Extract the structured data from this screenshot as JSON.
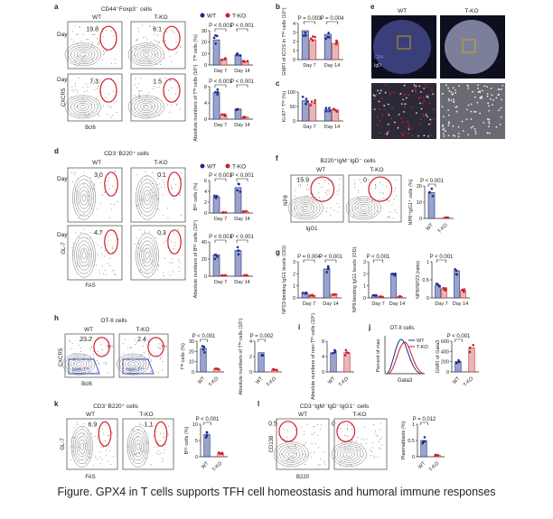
{
  "caption": "Figure. GPX4 in T cells supports TFH cell homeostasis and humoral immune responses",
  "groups": {
    "wt": "WT",
    "ko": "T-KO"
  },
  "colors": {
    "wt": "#1f2a8c",
    "ko": "#c8202a",
    "gate": "#d4202a",
    "contour": "#555555",
    "wt_bar": "#9aa4c8",
    "ko_bar": "#e6b8b8"
  },
  "panels": {
    "a": {
      "letter": "a",
      "title": "CD44⁺Foxp3⁻ cells",
      "row_labels": [
        "Day 7",
        "Day 14"
      ],
      "gate_values": [
        "19.8",
        "6.1",
        "7.3",
        "1.5"
      ],
      "x_axis": "Bcl6",
      "y_axis": "CXCR5",
      "chart1_ylabel": "Tᶠᴴ cells (%)",
      "chart1_pvals": [
        "P < 0.001",
        "P < 0.001"
      ],
      "chart2_ylabel": "Absolute numbers of Tᶠᴴ cells (10⁵)",
      "chart2_pvals": [
        "P < 0.001",
        "P < 0.001"
      ],
      "x_categories": [
        "Day 7",
        "Day 14"
      ]
    },
    "b": {
      "letter": "b",
      "ylabel": "GMFI of ICOS in Tᶠᴴ cells (10⁴)",
      "pvals": [
        "P = 0.003",
        "P = 0.004"
      ],
      "x_categories": [
        "Day 7",
        "Day 14"
      ]
    },
    "c": {
      "letter": "c",
      "ylabel": "Ki-67⁺ Tᶠᴴ (%)",
      "x_categories": [
        "Day 7",
        "Day 14"
      ]
    },
    "e": {
      "letter": "e",
      "labels": [
        "WT",
        "T-KO"
      ],
      "stain_labels": [
        "CD4",
        "IgD"
      ]
    },
    "d": {
      "letter": "d",
      "title": "CD3⁻B220⁺ cells",
      "row_labels": [
        "Day 7",
        "Day 14"
      ],
      "gate_values": [
        "3.0",
        "0.1",
        "4.7",
        "0.3"
      ],
      "x_axis": "FAS",
      "y_axis": "GL-7",
      "chart1_ylabel": "Bᴳᶜ cells (%)",
      "chart1_pvals": [
        "P < 0.001",
        "P < 0.001"
      ],
      "chart2_ylabel": "Absolute numbers of Bᴳᶜ cells (10⁵)",
      "chart2_pvals": [
        "P < 0.001",
        "P < 0.001"
      ],
      "x_categories": [
        "Day 7",
        "Day 14"
      ]
    },
    "f": {
      "letter": "f",
      "title": "B220⁺IgM⁻IgD⁻ cells",
      "gate_values": [
        "15.9",
        "0"
      ],
      "x_axis": "IgG1",
      "y_axis": "NP8",
      "ylabel": "NP8⁺IgG1⁺ cells (%)",
      "pval": "P < 0.001"
    },
    "g": {
      "letter": "g",
      "ylabels": [
        "NP23-binding IgG1 levels (OD)",
        "NP8-binding IgG1 levels (OD)",
        "NP8/NP23 (ratio)"
      ],
      "pvals": [
        "P = 0.004",
        "P < 0.001",
        "P < 0.001",
        "P < 0.001"
      ],
      "x_categories": [
        "Day 7",
        "Day 14"
      ]
    },
    "h": {
      "letter": "h",
      "title": "OT-II cells",
      "gate_values": [
        "23.2",
        "2.4"
      ],
      "gate_label": "Tᶠᴴ",
      "nontfh_label": "Non-Tᶠᴴ",
      "x_axis": "Bcl6",
      "y_axis": "CXCR5",
      "chart1_ylabel": "Tᶠᴴ cells (%)",
      "chart1_pval": "P < 0.001",
      "chart2_ylabel": "Absolute numbers of Tᶠᴴ cells (10⁵)",
      "chart2_pval": "P = 0.002"
    },
    "i": {
      "letter": "i",
      "ylabel": "Absolute numbers of non-Tᶠᴴ cells (10⁵)"
    },
    "j": {
      "letter": "j",
      "title": "OT-II cells",
      "x_axis": "Gata3",
      "y_axis": "Percent of max",
      "ylabel": "GMFI of Gata3",
      "pval": "P < 0.001",
      "yticks": [
        "0",
        "200",
        "400",
        "600"
      ]
    },
    "k": {
      "letter": "k",
      "title": "CD3⁻B220⁺ cells",
      "gate_values": [
        "6.9",
        "1.1"
      ],
      "x_axis": "FAS",
      "y_axis": "GL-7",
      "ylabel": "Bᴳᶜ cells (%)",
      "pval": "P < 0.001"
    },
    "l": {
      "letter": "l",
      "title": "CD3⁻IgM⁻IgD⁻IgG1⁻ cells",
      "gate_values": [
        "0.5",
        "0"
      ],
      "x_axis": "B220",
      "y_axis": "CD138",
      "ylabel": "Plasmablasts (%)",
      "pval": "P = 0.012"
    }
  },
  "chart_data": [
    {
      "panel": "a-1",
      "type": "bar",
      "ylabel": "Tᶠᴴ cells (%)",
      "categories": [
        "Day 7",
        "Day 14"
      ],
      "ylim": [
        0,
        30
      ],
      "yticks": [
        0,
        10,
        20,
        30
      ],
      "series": [
        {
          "name": "WT",
          "values": [
            22,
            9
          ]
        },
        {
          "name": "T-KO",
          "values": [
            5,
            3
          ]
        }
      ]
    },
    {
      "panel": "a-2",
      "type": "bar",
      "ylabel": "Absolute numbers of Tᶠᴴ cells (10⁵)",
      "categories": [
        "Day 7",
        "Day 14"
      ],
      "ylim": [
        0,
        8
      ],
      "yticks": [
        0,
        4,
        8
      ],
      "series": [
        {
          "name": "WT",
          "values": [
            6.5,
            2.5
          ]
        },
        {
          "name": "T-KO",
          "values": [
            1.0,
            0.5
          ]
        }
      ]
    },
    {
      "panel": "b",
      "type": "bar",
      "ylabel": "GMFI of ICOS in Tᶠᴴ cells (10⁴)",
      "categories": [
        "Day 7",
        "Day 14"
      ],
      "ylim": [
        0,
        4
      ],
      "yticks": [
        0,
        1,
        2,
        3,
        4
      ],
      "series": [
        {
          "name": "WT",
          "values": [
            3.2,
            2.8
          ]
        },
        {
          "name": "T-KO",
          "values": [
            2.2,
            1.8
          ]
        }
      ]
    },
    {
      "panel": "c",
      "type": "bar",
      "ylabel": "Ki-67⁺ Tᶠᴴ (%)",
      "categories": [
        "Day 7",
        "Day 14"
      ],
      "ylim": [
        0,
        100
      ],
      "yticks": [
        0,
        50,
        100
      ],
      "series": [
        {
          "name": "WT",
          "values": [
            70,
            40
          ]
        },
        {
          "name": "T-KO",
          "values": [
            60,
            38
          ]
        }
      ]
    },
    {
      "panel": "d-1",
      "type": "bar",
      "ylabel": "Bᴳᶜ cells (%)",
      "categories": [
        "Day 7",
        "Day 14"
      ],
      "ylim": [
        0,
        6
      ],
      "yticks": [
        0,
        2,
        4,
        6
      ],
      "series": [
        {
          "name": "WT",
          "values": [
            3.0,
            4.7
          ]
        },
        {
          "name": "T-KO",
          "values": [
            0.1,
            0.3
          ]
        }
      ]
    },
    {
      "panel": "d-2",
      "type": "bar",
      "ylabel": "Absolute numbers of Bᴳᶜ cells (10⁵)",
      "categories": [
        "Day 7",
        "Day 14"
      ],
      "ylim": [
        0,
        40
      ],
      "yticks": [
        0,
        20,
        40
      ],
      "series": [
        {
          "name": "WT",
          "values": [
            25,
            30
          ]
        },
        {
          "name": "T-KO",
          "values": [
            1,
            1
          ]
        }
      ]
    },
    {
      "panel": "f",
      "type": "bar",
      "ylabel": "NP8⁺IgG1⁺ cells (%)",
      "categories": [
        "WT",
        "T-KO"
      ],
      "ylim": [
        0,
        20
      ],
      "yticks": [
        0,
        10,
        20
      ],
      "series": [
        {
          "name": "",
          "values": [
            15.9,
            0.5
          ]
        }
      ]
    },
    {
      "panel": "g-1",
      "type": "bar",
      "ylabel": "NP23-binding IgG1 levels (OD)",
      "categories": [
        "Day 7",
        "Day 14"
      ],
      "ylim": [
        0,
        3
      ],
      "yticks": [
        0,
        1,
        2,
        3
      ],
      "series": [
        {
          "name": "WT",
          "values": [
            0.4,
            2.4
          ]
        },
        {
          "name": "T-KO",
          "values": [
            0.2,
            0.3
          ]
        }
      ]
    },
    {
      "panel": "g-2",
      "type": "bar",
      "ylabel": "NP8-binding IgG1 levels (OD)",
      "categories": [
        "Day 7",
        "Day 14"
      ],
      "ylim": [
        0,
        3
      ],
      "yticks": [
        0,
        1,
        2,
        3
      ],
      "series": [
        {
          "name": "WT",
          "values": [
            0.2,
            2.0
          ]
        },
        {
          "name": "T-KO",
          "values": [
            0.1,
            0.1
          ]
        }
      ]
    },
    {
      "panel": "g-3",
      "type": "bar",
      "ylabel": "NP8/NP23 (ratio)",
      "categories": [
        "Day 7",
        "Day 14"
      ],
      "ylim": [
        0,
        1
      ],
      "yticks": [
        0,
        0.5,
        1
      ],
      "series": [
        {
          "name": "WT",
          "values": [
            0.35,
            0.75
          ]
        },
        {
          "name": "T-KO",
          "values": [
            0.25,
            0.2
          ]
        }
      ]
    },
    {
      "panel": "h-1",
      "type": "bar",
      "ylabel": "Tᶠᴴ cells (%)",
      "categories": [
        "WT",
        "T-KO"
      ],
      "ylim": [
        0,
        30
      ],
      "yticks": [
        0,
        10,
        20,
        30
      ],
      "series": [
        {
          "name": "",
          "values": [
            23,
            3
          ]
        }
      ]
    },
    {
      "panel": "h-2",
      "type": "bar",
      "ylabel": "Absolute numbers of Tᶠᴴ cells (10⁵)",
      "categories": [
        "WT",
        "T-KO"
      ],
      "ylim": [
        0,
        4
      ],
      "yticks": [
        0,
        2,
        4
      ],
      "series": [
        {
          "name": "",
          "values": [
            2.5,
            0.3
          ]
        }
      ]
    },
    {
      "panel": "i",
      "type": "bar",
      "ylabel": "Absolute numbers of non-Tᶠᴴ cells (10⁵)",
      "categories": [
        "WT",
        "T-KO"
      ],
      "ylim": [
        0,
        8
      ],
      "yticks": [
        0,
        4,
        8
      ],
      "series": [
        {
          "name": "",
          "values": [
            5,
            5
          ]
        }
      ]
    },
    {
      "panel": "j",
      "type": "bar",
      "ylabel": "GMFI of Gata3",
      "categories": [
        "WT",
        "T-KO"
      ],
      "ylim": [
        0,
        600
      ],
      "yticks": [
        0,
        200,
        400,
        600
      ],
      "series": [
        {
          "name": "",
          "values": [
            200,
            470
          ]
        }
      ]
    },
    {
      "panel": "k",
      "type": "bar",
      "ylabel": "Bᴳᶜ cells (%)",
      "categories": [
        "WT",
        "T-KO"
      ],
      "ylim": [
        0,
        10
      ],
      "yticks": [
        0,
        5,
        10
      ],
      "series": [
        {
          "name": "",
          "values": [
            6.9,
            1.1
          ]
        }
      ]
    },
    {
      "panel": "l",
      "type": "bar",
      "ylabel": "Plasmablasts (%)",
      "categories": [
        "WT",
        "T-KO"
      ],
      "ylim": [
        0,
        1
      ],
      "yticks": [
        0,
        0.5,
        1
      ],
      "series": [
        {
          "name": "",
          "values": [
            0.5,
            0.05
          ]
        }
      ]
    }
  ]
}
